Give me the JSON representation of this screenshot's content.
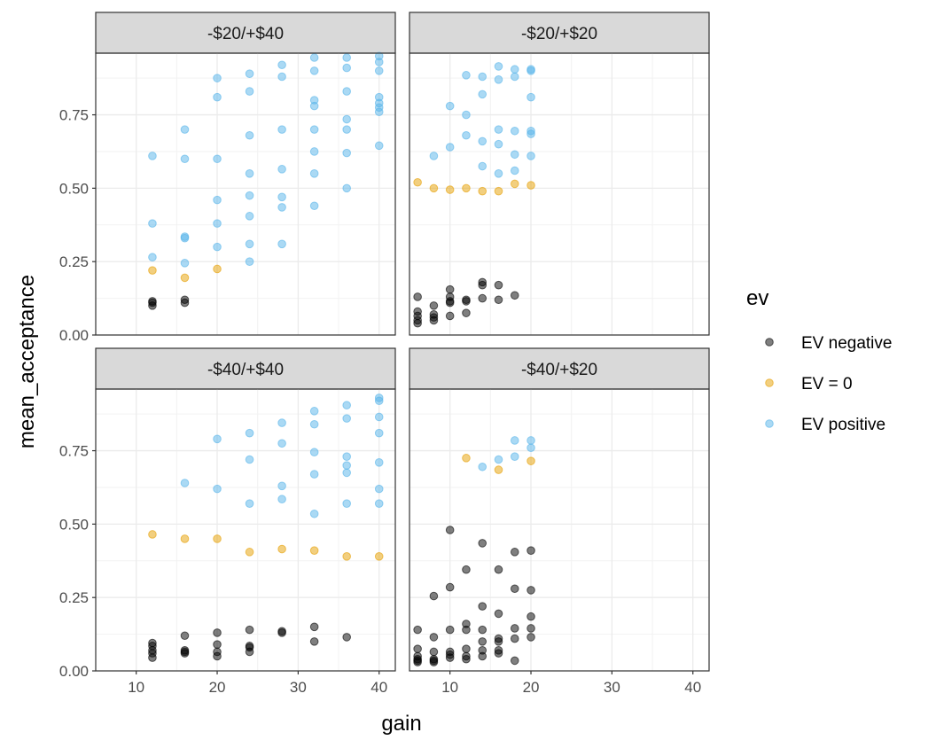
{
  "chart_data": {
    "type": "scatter",
    "xlabel": "gain",
    "ylabel": "mean_acceptance",
    "xlim": [
      5,
      42
    ],
    "ylim": [
      0,
      0.96
    ],
    "x_ticks": [
      "10",
      "20",
      "30",
      "40"
    ],
    "y_ticks": [
      "0.00",
      "0.25",
      "0.50",
      "0.75"
    ],
    "grid": true,
    "legend": {
      "title": "ev",
      "position": "right",
      "entries": [
        "EV negative",
        "EV = 0",
        "EV positive"
      ]
    },
    "colors": {
      "EV negative": "#000000",
      "EV = 0": "#E69F00",
      "EV positive": "#56B4E9"
    },
    "panels": [
      {
        "label": "-$20/+$40",
        "series": [
          {
            "name": "EV negative",
            "points": [
              [
                12,
                0.1
              ],
              [
                12,
                0.11
              ],
              [
                12,
                0.115
              ],
              [
                16,
                0.11
              ],
              [
                16,
                0.12
              ]
            ]
          },
          {
            "name": "EV = 0",
            "points": [
              [
                12,
                0.22
              ],
              [
                16,
                0.195
              ],
              [
                20,
                0.225
              ]
            ]
          },
          {
            "name": "EV positive",
            "points": [
              [
                12,
                0.61
              ],
              [
                12,
                0.38
              ],
              [
                12,
                0.265
              ],
              [
                16,
                0.7
              ],
              [
                16,
                0.6
              ],
              [
                16,
                0.335
              ],
              [
                16,
                0.33
              ],
              [
                16,
                0.245
              ],
              [
                20,
                0.875
              ],
              [
                20,
                0.81
              ],
              [
                20,
                0.6
              ],
              [
                20,
                0.46
              ],
              [
                20,
                0.38
              ],
              [
                20,
                0.3
              ],
              [
                24,
                0.89
              ],
              [
                24,
                0.83
              ],
              [
                24,
                0.68
              ],
              [
                24,
                0.55
              ],
              [
                24,
                0.475
              ],
              [
                24,
                0.405
              ],
              [
                24,
                0.31
              ],
              [
                24,
                0.25
              ],
              [
                28,
                0.92
              ],
              [
                28,
                0.88
              ],
              [
                28,
                0.7
              ],
              [
                28,
                0.565
              ],
              [
                28,
                0.47
              ],
              [
                28,
                0.435
              ],
              [
                28,
                0.31
              ],
              [
                32,
                0.945
              ],
              [
                32,
                0.9
              ],
              [
                32,
                0.8
              ],
              [
                32,
                0.78
              ],
              [
                32,
                0.7
              ],
              [
                32,
                0.625
              ],
              [
                32,
                0.55
              ],
              [
                32,
                0.44
              ],
              [
                36,
                0.945
              ],
              [
                36,
                0.91
              ],
              [
                36,
                0.83
              ],
              [
                36,
                0.735
              ],
              [
                36,
                0.7
              ],
              [
                36,
                0.62
              ],
              [
                36,
                0.5
              ],
              [
                40,
                0.95
              ],
              [
                40,
                0.93
              ],
              [
                40,
                0.9
              ],
              [
                40,
                0.81
              ],
              [
                40,
                0.79
              ],
              [
                40,
                0.775
              ],
              [
                40,
                0.76
              ],
              [
                40,
                0.645
              ]
            ]
          }
        ]
      },
      {
        "label": "-$20/+$20",
        "series": [
          {
            "name": "EV negative",
            "points": [
              [
                6,
                0.13
              ],
              [
                6,
                0.08
              ],
              [
                6,
                0.065
              ],
              [
                6,
                0.05
              ],
              [
                6,
                0.04
              ],
              [
                8,
                0.1
              ],
              [
                8,
                0.07
              ],
              [
                8,
                0.06
              ],
              [
                8,
                0.05
              ],
              [
                10,
                0.155
              ],
              [
                10,
                0.13
              ],
              [
                10,
                0.115
              ],
              [
                10,
                0.11
              ],
              [
                10,
                0.065
              ],
              [
                12,
                0.12
              ],
              [
                12,
                0.115
              ],
              [
                12,
                0.075
              ],
              [
                14,
                0.18
              ],
              [
                14,
                0.17
              ],
              [
                14,
                0.125
              ],
              [
                16,
                0.17
              ],
              [
                16,
                0.12
              ],
              [
                18,
                0.135
              ]
            ]
          },
          {
            "name": "EV = 0",
            "points": [
              [
                6,
                0.52
              ],
              [
                8,
                0.5
              ],
              [
                10,
                0.495
              ],
              [
                12,
                0.5
              ],
              [
                14,
                0.49
              ],
              [
                16,
                0.49
              ],
              [
                18,
                0.515
              ],
              [
                20,
                0.51
              ]
            ]
          },
          {
            "name": "EV positive",
            "points": [
              [
                8,
                0.61
              ],
              [
                10,
                0.78
              ],
              [
                10,
                0.64
              ],
              [
                12,
                0.885
              ],
              [
                12,
                0.75
              ],
              [
                12,
                0.68
              ],
              [
                14,
                0.88
              ],
              [
                14,
                0.82
              ],
              [
                14,
                0.66
              ],
              [
                14,
                0.575
              ],
              [
                16,
                0.915
              ],
              [
                16,
                0.87
              ],
              [
                16,
                0.7
              ],
              [
                16,
                0.65
              ],
              [
                16,
                0.55
              ],
              [
                18,
                0.905
              ],
              [
                18,
                0.88
              ],
              [
                18,
                0.695
              ],
              [
                18,
                0.615
              ],
              [
                18,
                0.56
              ],
              [
                20,
                0.905
              ],
              [
                20,
                0.9
              ],
              [
                20,
                0.81
              ],
              [
                20,
                0.695
              ],
              [
                20,
                0.685
              ],
              [
                20,
                0.61
              ]
            ]
          }
        ]
      },
      {
        "label": "-$40/+$40",
        "series": [
          {
            "name": "EV negative",
            "points": [
              [
                12,
                0.095
              ],
              [
                12,
                0.085
              ],
              [
                12,
                0.07
              ],
              [
                12,
                0.06
              ],
              [
                12,
                0.045
              ],
              [
                16,
                0.12
              ],
              [
                16,
                0.07
              ],
              [
                16,
                0.065
              ],
              [
                16,
                0.06
              ],
              [
                20,
                0.13
              ],
              [
                20,
                0.09
              ],
              [
                20,
                0.065
              ],
              [
                20,
                0.05
              ],
              [
                24,
                0.14
              ],
              [
                24,
                0.085
              ],
              [
                24,
                0.08
              ],
              [
                24,
                0.065
              ],
              [
                28,
                0.13
              ],
              [
                28,
                0.135
              ],
              [
                32,
                0.15
              ],
              [
                32,
                0.1
              ],
              [
                36,
                0.115
              ]
            ]
          },
          {
            "name": "EV = 0",
            "points": [
              [
                12,
                0.465
              ],
              [
                16,
                0.45
              ],
              [
                20,
                0.45
              ],
              [
                24,
                0.405
              ],
              [
                28,
                0.415
              ],
              [
                32,
                0.41
              ],
              [
                36,
                0.39
              ],
              [
                40,
                0.39
              ]
            ]
          },
          {
            "name": "EV positive",
            "points": [
              [
                16,
                0.64
              ],
              [
                20,
                0.79
              ],
              [
                20,
                0.62
              ],
              [
                24,
                0.81
              ],
              [
                24,
                0.72
              ],
              [
                24,
                0.57
              ],
              [
                28,
                0.845
              ],
              [
                28,
                0.775
              ],
              [
                28,
                0.63
              ],
              [
                28,
                0.585
              ],
              [
                32,
                0.885
              ],
              [
                32,
                0.84
              ],
              [
                32,
                0.745
              ],
              [
                32,
                0.67
              ],
              [
                32,
                0.535
              ],
              [
                36,
                0.905
              ],
              [
                36,
                0.86
              ],
              [
                36,
                0.73
              ],
              [
                36,
                0.7
              ],
              [
                36,
                0.675
              ],
              [
                36,
                0.57
              ],
              [
                40,
                0.93
              ],
              [
                40,
                0.92
              ],
              [
                40,
                0.865
              ],
              [
                40,
                0.81
              ],
              [
                40,
                0.71
              ],
              [
                40,
                0.62
              ],
              [
                40,
                0.57
              ]
            ]
          }
        ]
      },
      {
        "label": "-$40/+$20",
        "series": [
          {
            "name": "EV negative",
            "points": [
              [
                6,
                0.14
              ],
              [
                6,
                0.075
              ],
              [
                6,
                0.05
              ],
              [
                6,
                0.04
              ],
              [
                6,
                0.035
              ],
              [
                6,
                0.03
              ],
              [
                8,
                0.255
              ],
              [
                8,
                0.115
              ],
              [
                8,
                0.065
              ],
              [
                8,
                0.04
              ],
              [
                8,
                0.035
              ],
              [
                8,
                0.03
              ],
              [
                10,
                0.48
              ],
              [
                10,
                0.285
              ],
              [
                10,
                0.14
              ],
              [
                10,
                0.065
              ],
              [
                10,
                0.055
              ],
              [
                10,
                0.045
              ],
              [
                12,
                0.345
              ],
              [
                12,
                0.16
              ],
              [
                12,
                0.14
              ],
              [
                12,
                0.075
              ],
              [
                12,
                0.05
              ],
              [
                12,
                0.04
              ],
              [
                14,
                0.435
              ],
              [
                14,
                0.22
              ],
              [
                14,
                0.14
              ],
              [
                14,
                0.1
              ],
              [
                14,
                0.07
              ],
              [
                14,
                0.05
              ],
              [
                16,
                0.345
              ],
              [
                16,
                0.195
              ],
              [
                16,
                0.11
              ],
              [
                16,
                0.1
              ],
              [
                16,
                0.07
              ],
              [
                16,
                0.06
              ],
              [
                18,
                0.405
              ],
              [
                18,
                0.28
              ],
              [
                18,
                0.145
              ],
              [
                18,
                0.11
              ],
              [
                18,
                0.035
              ],
              [
                20,
                0.41
              ],
              [
                20,
                0.275
              ],
              [
                20,
                0.185
              ],
              [
                20,
                0.145
              ],
              [
                20,
                0.115
              ]
            ]
          },
          {
            "name": "EV = 0",
            "points": [
              [
                12,
                0.725
              ],
              [
                16,
                0.685
              ],
              [
                20,
                0.715
              ]
            ]
          },
          {
            "name": "EV positive",
            "points": [
              [
                14,
                0.695
              ],
              [
                16,
                0.72
              ],
              [
                18,
                0.785
              ],
              [
                18,
                0.73
              ],
              [
                20,
                0.785
              ],
              [
                20,
                0.76
              ]
            ]
          }
        ]
      }
    ]
  }
}
